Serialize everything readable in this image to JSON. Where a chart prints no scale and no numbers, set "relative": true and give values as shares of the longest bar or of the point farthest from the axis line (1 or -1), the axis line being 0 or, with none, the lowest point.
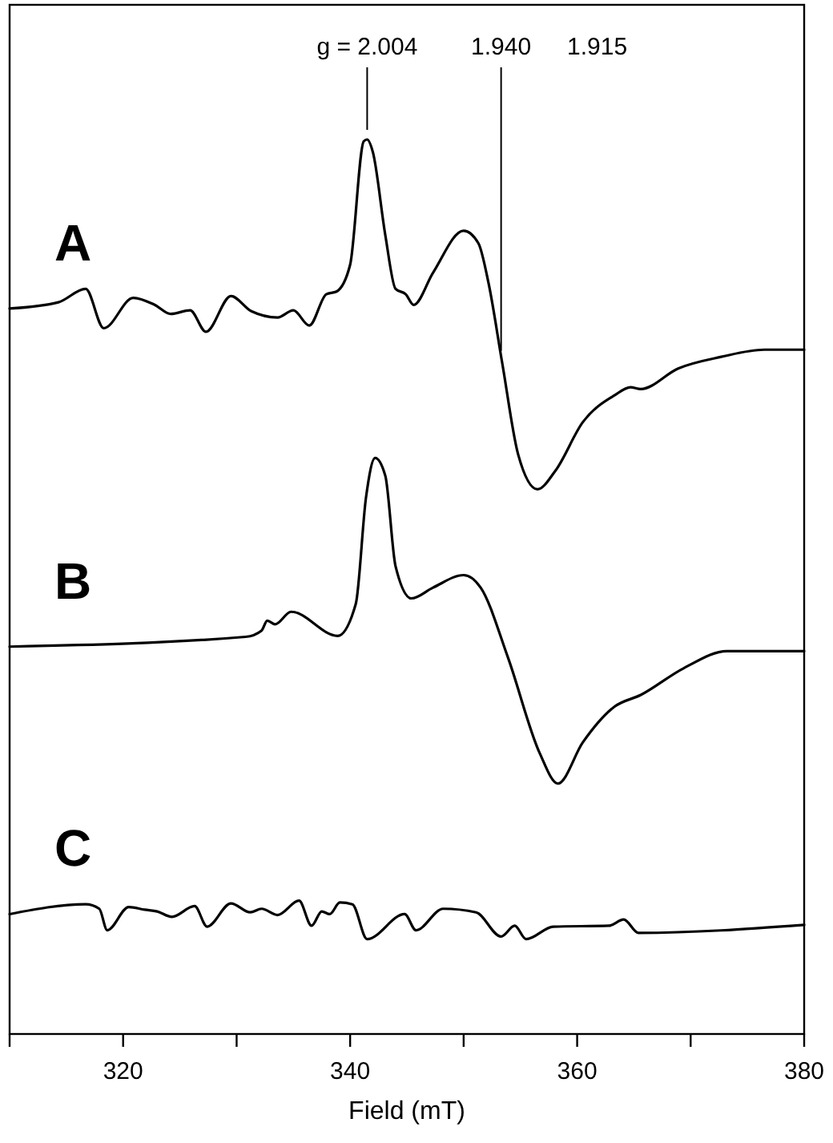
{
  "chart_data": {
    "type": "line",
    "relative": true,
    "xlabel": "Field (mT)",
    "xlim": [
      310,
      380
    ],
    "xticks": [
      {
        "value": 310,
        "label": null
      },
      320,
      {
        "value": 330,
        "label": null
      },
      340,
      {
        "value": 350,
        "label": null
      },
      360,
      {
        "value": 370,
        "label": null
      },
      380
    ],
    "grid": false,
    "marker": "none",
    "line_style": "solid",
    "annotations": [
      {
        "text": "g = 2.004",
        "x": 341.5,
        "y": 1.0
      },
      {
        "text": "1.940",
        "x": 353.3,
        "y": 0.753
      },
      "1.915"
    ],
    "series": [
      {
        "name": "A",
        "color": "#000000",
        "x": [
          310,
          314.3,
          316.7,
          318.3,
          320.9,
          322.8,
          324.2,
          325.9,
          327.3,
          329.5,
          331.3,
          333.6,
          335.0,
          336.4,
          337.9,
          338.8,
          340.0,
          341.2,
          341.5,
          342.0,
          343.1,
          344.0,
          344.9,
          345.6,
          347.3,
          350.0,
          351.3,
          352.2,
          353.4,
          354.8,
          356.5,
          358.1,
          360.5,
          363.3,
          364.7,
          365.6,
          368.9,
          372.7,
          376.5,
          380
        ],
        "values": [
          0.811,
          0.818,
          0.833,
          0.789,
          0.823,
          0.815,
          0.805,
          0.809,
          0.785,
          0.825,
          0.808,
          0.801,
          0.809,
          0.792,
          0.827,
          0.83,
          0.86,
          0.998,
          1.0,
          0.986,
          0.893,
          0.833,
          0.827,
          0.815,
          0.851,
          0.898,
          0.884,
          0.839,
          0.75,
          0.648,
          0.609,
          0.63,
          0.684,
          0.714,
          0.723,
          0.721,
          0.744,
          0.757,
          0.765,
          0.765
        ]
      },
      {
        "name": "B",
        "color": "#000000",
        "x": [
          310,
          330.8,
          332.2,
          332.7,
          333.4,
          334.8,
          338.9,
          340.5,
          341.4,
          342.2,
          343.1,
          344.0,
          345.4,
          347.3,
          350.0,
          351.5,
          353.9,
          356.7,
          358.3,
          360.5,
          363.3,
          365.6,
          369.4,
          373.2,
          380
        ],
        "values": [
          0.433,
          0.444,
          0.451,
          0.462,
          0.458,
          0.472,
          0.445,
          0.481,
          0.6,
          0.644,
          0.624,
          0.523,
          0.487,
          0.499,
          0.513,
          0.499,
          0.421,
          0.314,
          0.28,
          0.326,
          0.366,
          0.379,
          0.409,
          0.428,
          0.428
        ]
      },
      {
        "name": "C",
        "color": "#000000",
        "x": [
          310,
          316.7,
          317.9,
          318.6,
          320.5,
          321.9,
          323.0,
          324.3,
          326.3,
          327.4,
          329.5,
          331.2,
          332.2,
          333.6,
          335.5,
          336.6,
          337.5,
          338.2,
          339.1,
          340.2,
          341.5,
          344.8,
          345.8,
          348.2,
          351.1,
          353.3,
          354.5,
          355.5,
          357.9,
          362.8,
          364.1,
          365.4,
          380
        ],
        "values": [
          0.134,
          0.145,
          0.14,
          0.116,
          0.142,
          0.139,
          0.137,
          0.131,
          0.143,
          0.12,
          0.146,
          0.136,
          0.14,
          0.133,
          0.149,
          0.121,
          0.137,
          0.134,
          0.147,
          0.145,
          0.106,
          0.134,
          0.116,
          0.14,
          0.136,
          0.109,
          0.121,
          0.106,
          0.12,
          0.121,
          0.128,
          0.113,
          0.122
        ]
      }
    ]
  }
}
